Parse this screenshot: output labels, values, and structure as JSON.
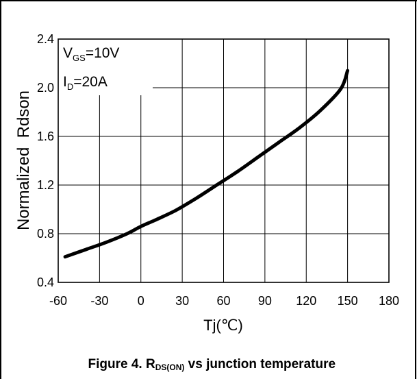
{
  "chart_data": {
    "type": "line",
    "xlabel": "Tj(℃)",
    "ylabel": "Normalized  Rdson",
    "caption": "Figure 4. RDS(ON) vs junction temperature",
    "caption_parts": {
      "prefix": "Figure 4. R",
      "subscript": "DS(ON)",
      "suffix": " vs junction temperature"
    },
    "annotations": [
      {
        "main": "V",
        "sub": "GS",
        "rest": "=10V"
      },
      {
        "main": "I",
        "sub": "D",
        "rest": "=20A"
      }
    ],
    "xlim": [
      -60,
      180
    ],
    "ylim": [
      0.4,
      2.4
    ],
    "x_ticks": [
      -60,
      -30,
      0,
      30,
      60,
      90,
      120,
      150,
      180
    ],
    "y_ticks": [
      0.4,
      0.8,
      1.2,
      1.6,
      2.0,
      2.4
    ],
    "x_tick_labels": [
      "-60",
      "-30",
      "0",
      "30",
      "60",
      "90",
      "120",
      "150",
      "180"
    ],
    "y_tick_labels": [
      "0.4",
      "0.8",
      "1.2",
      "1.6",
      "2.0",
      "2.4"
    ],
    "grid": true,
    "series": [
      {
        "x": [
          -55,
          -40,
          -25,
          -10,
          0,
          10,
          25,
          40,
          55,
          70,
          85,
          100,
          115,
          130,
          145,
          150
        ],
        "y": [
          0.61,
          0.67,
          0.73,
          0.8,
          0.86,
          0.91,
          0.99,
          1.09,
          1.2,
          1.31,
          1.43,
          1.55,
          1.67,
          1.81,
          1.99,
          2.14
        ]
      }
    ]
  }
}
